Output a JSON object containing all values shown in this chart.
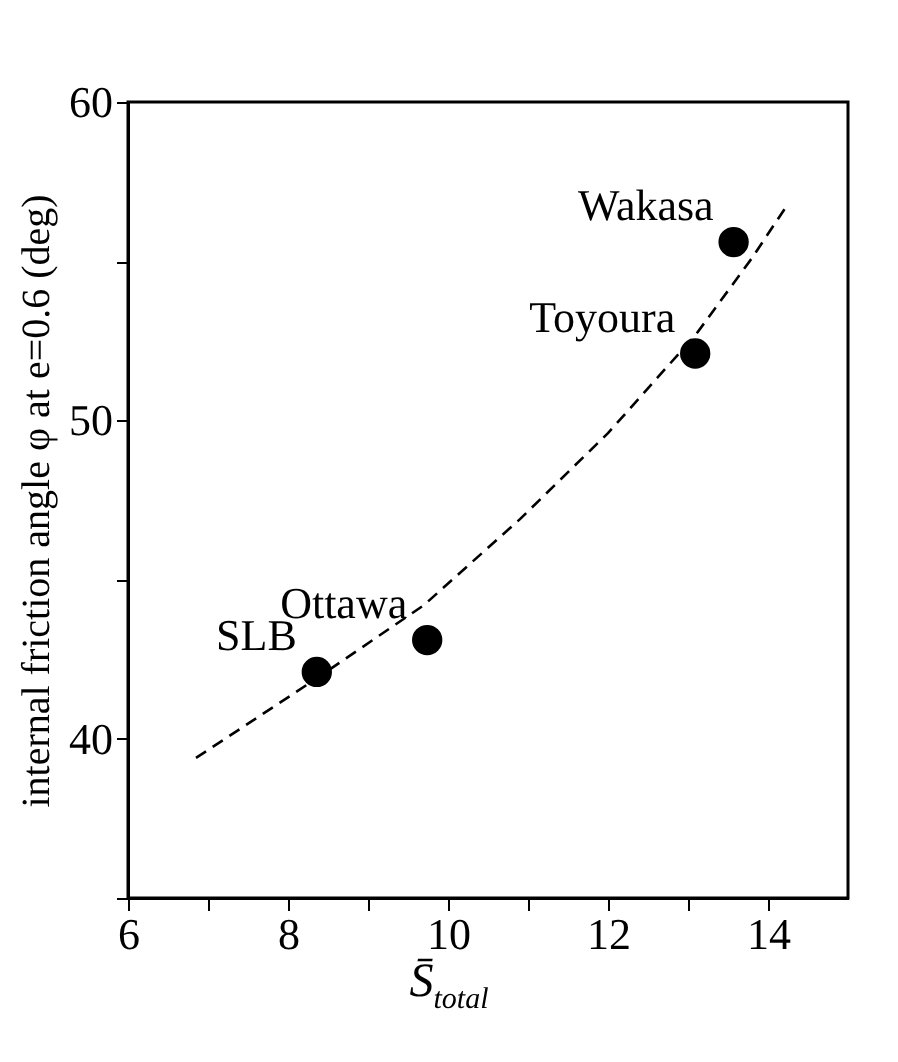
{
  "chart_data": {
    "type": "scatter",
    "xlabel": "S̄$_{total}$",
    "ylabel": "internal friction angle φ at e=0.6 (deg)",
    "xlim": [
      6,
      15
    ],
    "ylim": [
      35,
      60
    ],
    "xticks": [
      6,
      {
        "value": 7,
        "label": null
      },
      8,
      {
        "value": 9,
        "label": null
      },
      10,
      {
        "value": 11,
        "label": null
      },
      12,
      {
        "value": 13,
        "label": null
      },
      14
    ],
    "yticks": [
      {
        "value": 35,
        "label": null
      },
      40,
      {
        "value": 45,
        "label": null
      },
      50,
      {
        "value": 55,
        "label": null
      },
      60
    ],
    "series": [
      {
        "marker": "circle",
        "color": "#000000",
        "x": [
          8.36,
          9.74,
          13.09,
          13.57
        ],
        "values": [
          42.1,
          43.1,
          52.1,
          55.6
        ]
      },
      {
        "type": "line",
        "line_style": "dashed",
        "color": "#000000",
        "x": [
          6.85,
          8.3,
          9.7,
          10.9,
          12.0,
          13.1,
          13.8,
          14.25
        ],
        "values": [
          39.4,
          41.8,
          44.2,
          46.9,
          49.6,
          52.7,
          55.1,
          56.8
        ]
      }
    ],
    "annotations": [
      {
        "text": "SLB",
        "x": 8.36,
        "y": 42.1
      },
      {
        "text": "Ottawa",
        "x": 9.74,
        "y": 43.1
      },
      {
        "text": "Toyoura",
        "x": 13.09,
        "y": 52.1
      },
      {
        "text": "Wakasa",
        "x": 13.57,
        "y": 55.6
      }
    ]
  }
}
